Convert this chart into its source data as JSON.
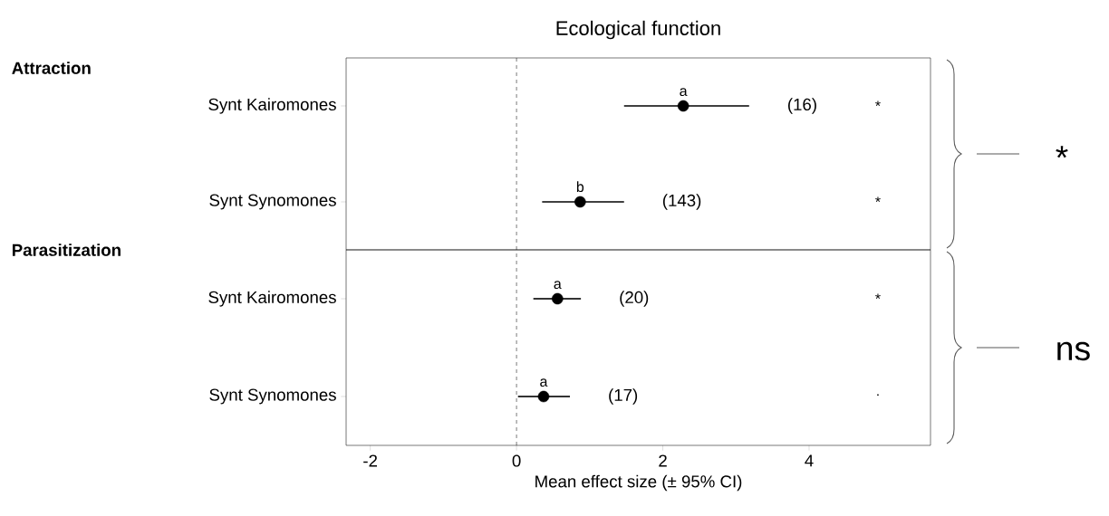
{
  "chart_data": [
    {
      "type": "scatter",
      "orientation": "horizontal",
      "title": "Ecological function",
      "ylabel": "Attraction",
      "categories": [
        "Synt Kairomones",
        "Synt Synomones"
      ],
      "color": "#000000",
      "values": [
        2.28,
        0.87
      ],
      "errors": [
        [
          1.47,
          3.18
        ],
        [
          0.35,
          1.47
        ]
      ],
      "xlim": [
        -2.33,
        5.66
      ],
      "xticks": [
        -2,
        0,
        2,
        4
      ],
      "tick_labels": "y",
      "ref_lines": [
        {
          "axis": "x",
          "value": 0,
          "line_style": "dashed"
        }
      ],
      "annotations": [
        "a",
        "(16)",
        "*",
        "b",
        "(143)",
        "*",
        "*"
      ]
    },
    {
      "type": "scatter",
      "orientation": "horizontal",
      "ylabel": "Parasitization",
      "xlabel": "Mean effect size (± 95% CI)",
      "categories": [
        "Synt Kairomones",
        "Synt Synomones"
      ],
      "color": "#000000",
      "values": [
        0.56,
        0.37
      ],
      "errors": [
        [
          0.23,
          0.88
        ],
        [
          0.02,
          0.73
        ]
      ],
      "xlim": [
        -2.33,
        5.66
      ],
      "xticks": [
        -2,
        0,
        2,
        4
      ],
      "ref_lines": [
        {
          "axis": "x",
          "value": 0,
          "line_style": "dashed"
        }
      ],
      "annotations": [
        "a",
        "(20)",
        "*",
        "a",
        "(17)",
        "·",
        "ns"
      ]
    }
  ]
}
